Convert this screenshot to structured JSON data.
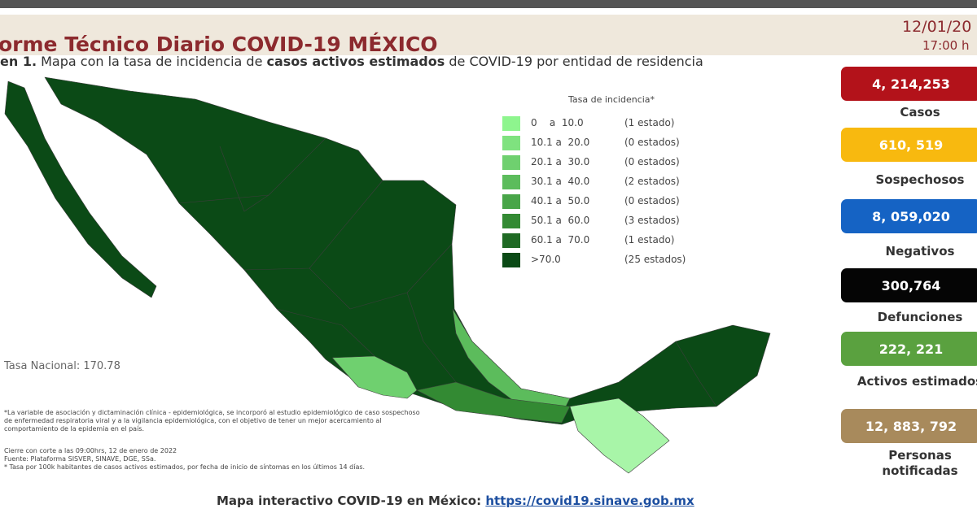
{
  "header": {
    "title": "orme Técnico Diario COVID-19 MÉXICO",
    "date": "12/01/20",
    "time": "17:00 h"
  },
  "subtitle": [
    "en 1.",
    " Mapa con la tasa de incidencia de ",
    "casos activos estimados",
    " de COVID-19 por entidad de residencia"
  ],
  "legend": {
    "title": "Tasa de incidencia*",
    "rows": [
      {
        "range": "0    a  10.0",
        "count": "(1 estado)",
        "color": "#8ef58e"
      },
      {
        "range": "10.1 a  20.0",
        "count": "(0 estados)",
        "color": "#7fe27f"
      },
      {
        "range": "20.1 a  30.0",
        "count": "(0 estados)",
        "color": "#6fd06f"
      },
      {
        "range": "30.1 a  40.0",
        "count": "(2 estados)",
        "color": "#5cbc5c"
      },
      {
        "range": "40.1 a  50.0",
        "count": "(0 estados)",
        "color": "#48a548"
      },
      {
        "range": "50.1 a  60.0",
        "count": "(3 estados)",
        "color": "#338a33"
      },
      {
        "range": "60.1 a  70.0",
        "count": "(1 estado)",
        "color": "#1f6a24"
      },
      {
        "range": ">70.0",
        "count": "(25 estados)",
        "color": "#0b4a16"
      }
    ]
  },
  "national_rate": "Tasa Nacional: 170.78",
  "footnotes": [
    "*La variable de asociación y dictaminación clínica - epidemiológica, se incorporó al estudio epidemiológico de caso sospechoso de enfermedad respiratoria viral y a la vigilancia epidemiológica, con el objetivo de tener un mejor acercamiento al comportamiento de la epidemia en el país.",
    "Cierre con corte a las 09:00hrs, 12 de enero de 2022",
    "Fuente: Plataforma SISVER, SINAVE, DGE, SSa.",
    "* Tasa por 100k habitantes de casos activos estimados, por fecha de inicio de síntomas en los últimos 14 días."
  ],
  "stats": [
    {
      "value": "4, 214,253",
      "label": "Casos",
      "color": "#b3121a"
    },
    {
      "value": "610, 519",
      "label": "Sospechosos",
      "color": "#f8b90f"
    },
    {
      "value": "8, 059,020",
      "label": "Negativos",
      "color": "#1563c4"
    },
    {
      "value": "300,764",
      "label": "Defunciones",
      "color": "#050505"
    },
    {
      "value": "222, 221",
      "label": "Activos estimados",
      "color": "#5aa13f"
    },
    {
      "value": "12, 883, 792",
      "label": "Personas notificadas",
      "color": "#a88a5c"
    }
  ],
  "footer": {
    "text": "Mapa interactivo COVID-19 en México:",
    "link": "https://covid19.sinave.gob.mx"
  }
}
